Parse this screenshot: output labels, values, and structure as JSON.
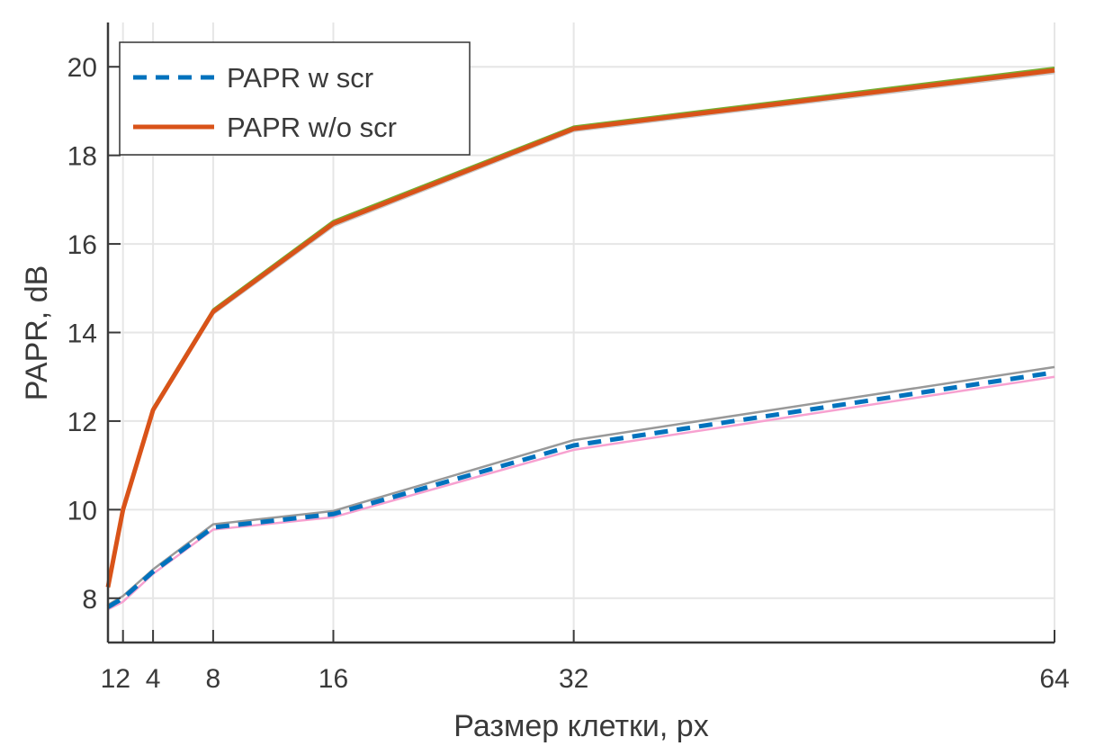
{
  "chart_data": {
    "type": "line",
    "title": "",
    "xlabel": "Размер клетки, px",
    "ylabel": "PAPR, dB",
    "xlim": [
      1,
      64
    ],
    "ylim": [
      7,
      21
    ],
    "xticks": [
      1,
      2,
      4,
      8,
      16,
      32,
      64
    ],
    "yticks": [
      8,
      10,
      12,
      14,
      16,
      18,
      20
    ],
    "grid": true,
    "legend_placement": "top-left",
    "x": [
      1,
      2,
      4,
      8,
      16,
      32,
      64
    ],
    "series": [
      {
        "values": [
          8.3,
          10.05,
          12.3,
          14.52,
          16.52,
          18.65,
          19.98
        ],
        "color": "#77AC30",
        "style": "solid"
      },
      {
        "values": [
          8.2,
          9.95,
          12.2,
          14.42,
          16.4,
          18.55,
          19.86
        ],
        "color": "#C8C8C8",
        "style": "solid"
      },
      {
        "values": [
          7.85,
          8.05,
          8.65,
          9.67,
          9.97,
          11.57,
          13.22
        ],
        "color": "#999999",
        "style": "solid"
      },
      {
        "values": [
          7.75,
          7.92,
          8.55,
          9.55,
          9.83,
          11.35,
          13.0
        ],
        "color": "#F7A1D0",
        "style": "solid"
      },
      {
        "name": "PAPR w scr",
        "values": [
          7.8,
          8.0,
          8.6,
          9.6,
          9.9,
          11.45,
          13.1
        ],
        "color": "#0072BD",
        "style": "dashed"
      },
      {
        "name": "PAPR w/o scr",
        "values": [
          8.25,
          10.0,
          12.25,
          14.47,
          16.46,
          18.6,
          19.92
        ],
        "color": "#D95319",
        "style": "solid"
      }
    ]
  }
}
